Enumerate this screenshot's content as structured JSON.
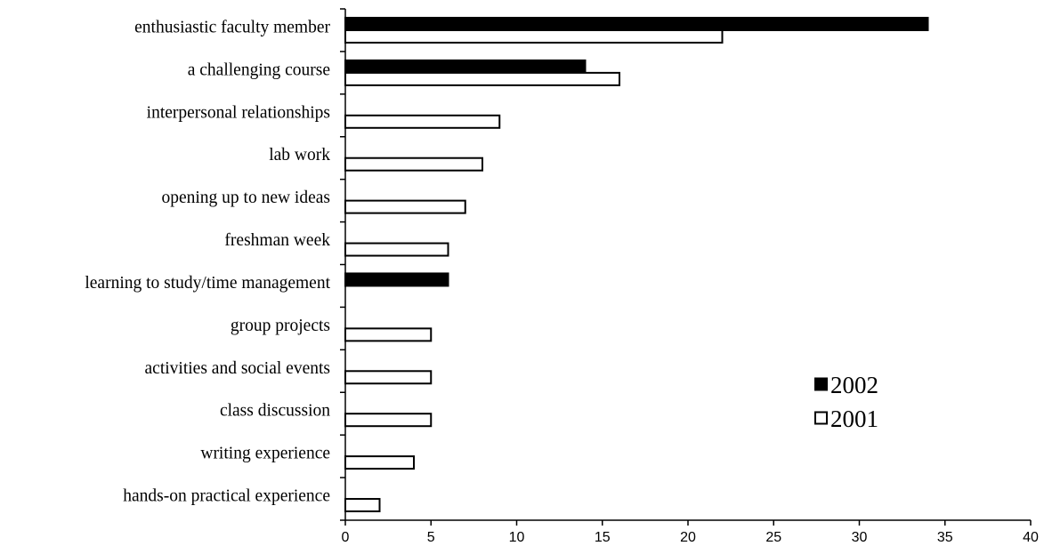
{
  "chart_data": {
    "type": "bar",
    "orientation": "horizontal",
    "categories": [
      "enthusiastic faculty member",
      "a challenging course",
      "interpersonal relationships",
      "lab work",
      "opening up to new ideas",
      "freshman week",
      "learning to study/time management",
      "group projects",
      "activities and social events",
      "class discussion",
      "writing experience",
      "hands-on practical experience"
    ],
    "series": [
      {
        "name": "2002",
        "color": "#000000",
        "values": [
          34,
          14,
          null,
          null,
          null,
          null,
          6,
          null,
          null,
          null,
          null,
          null
        ]
      },
      {
        "name": "2001",
        "color": "#ffffff",
        "values": [
          22,
          16,
          9,
          8,
          7,
          6,
          null,
          5,
          5,
          5,
          4,
          2
        ]
      }
    ],
    "xlim": [
      0,
      40
    ],
    "xticks": [
      "0",
      "5",
      "10",
      "15",
      "20",
      "25",
      "30",
      "35",
      "40"
    ],
    "grid": false,
    "legend": {
      "position": "bottom-right",
      "entries": [
        "2002",
        "2001"
      ]
    }
  }
}
